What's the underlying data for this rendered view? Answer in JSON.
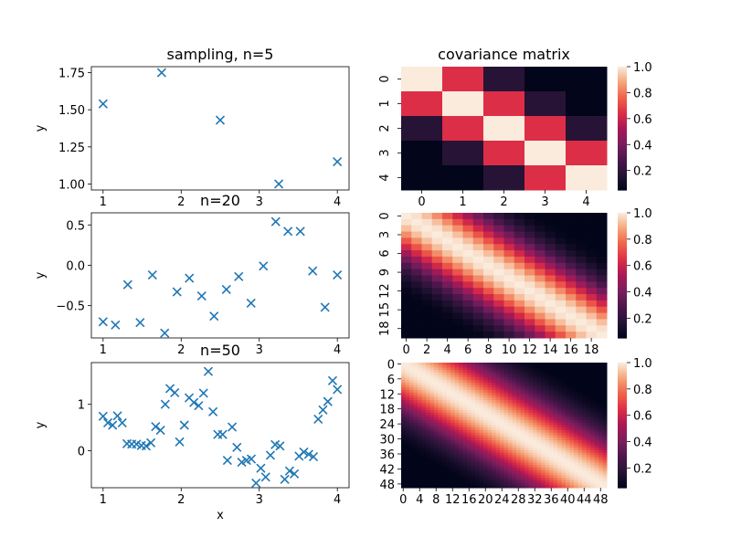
{
  "chart_data": [
    {
      "type": "scatter",
      "marker": "x",
      "color": "#1f77b4",
      "title": "sampling, n=5",
      "xlabel": "",
      "ylabel": "y",
      "xlim": [
        0.85,
        4.15
      ],
      "ylim": [
        0.96,
        1.79
      ],
      "xticks": [
        1,
        2,
        3,
        4
      ],
      "yticks": [
        1.0,
        1.25,
        1.5,
        1.75
      ],
      "ytick_labels": [
        "1.00",
        "1.25",
        "1.50",
        "1.75"
      ],
      "x": [
        1.0,
        1.75,
        2.5,
        3.25,
        4.0
      ],
      "y": [
        1.54,
        1.75,
        1.43,
        1.0,
        1.15
      ]
    },
    {
      "type": "heatmap",
      "title": "covariance matrix",
      "colormap": "rocket",
      "n": 5,
      "tick_step": 1,
      "length_scale": 0.8,
      "x_span": 3,
      "colorbar_ticks": [
        0.2,
        0.4,
        0.6,
        0.8,
        1.0
      ],
      "colorbar_tick_labels": [
        "0.2",
        "0.4",
        "0.6",
        "0.8",
        "1.0"
      ],
      "vmin": 0.05,
      "vmax": 1.0
    },
    {
      "type": "scatter",
      "marker": "x",
      "color": "#1f77b4",
      "title": "n=20",
      "xlabel": "",
      "ylabel": "y",
      "xlim": [
        0.85,
        4.15
      ],
      "ylim": [
        -0.9,
        0.65
      ],
      "xticks": [
        1,
        2,
        3,
        4
      ],
      "yticks": [
        -0.5,
        0.0,
        0.5
      ],
      "ytick_labels": [
        "−0.5",
        "0.0",
        "0.5"
      ],
      "x": [
        1.0,
        1.158,
        1.316,
        1.474,
        1.632,
        1.789,
        1.947,
        2.105,
        2.263,
        2.421,
        2.579,
        2.737,
        2.895,
        3.053,
        3.211,
        3.368,
        3.526,
        3.684,
        3.842,
        4.0
      ],
      "y": [
        -0.7,
        -0.74,
        -0.24,
        -0.71,
        -0.12,
        -0.84,
        -0.33,
        -0.16,
        -0.38,
        -0.63,
        -0.3,
        -0.14,
        -0.47,
        -0.01,
        0.54,
        0.42,
        0.42,
        -0.07,
        -0.52,
        -0.12
      ]
    },
    {
      "type": "heatmap",
      "title": "",
      "colormap": "rocket",
      "n": 20,
      "tick_step": 2,
      "y_tick_labels": [
        "0",
        "3",
        "6",
        "9",
        "12",
        "15",
        "18"
      ],
      "x_tick_labels": [
        "0",
        "2",
        "4",
        "6",
        "8",
        "10",
        "12",
        "14",
        "16",
        "18"
      ],
      "length_scale": 0.8,
      "x_span": 3,
      "colorbar_ticks": [
        0.2,
        0.4,
        0.6,
        0.8,
        1.0
      ],
      "colorbar_tick_labels": [
        "0.2",
        "0.4",
        "0.6",
        "0.8",
        "1.0"
      ],
      "vmin": 0.05,
      "vmax": 1.0
    },
    {
      "type": "scatter",
      "marker": "x",
      "color": "#1f77b4",
      "title": "n=50",
      "xlabel": "x",
      "ylabel": "y",
      "xlim": [
        0.85,
        4.15
      ],
      "ylim": [
        -0.8,
        1.9
      ],
      "xticks": [
        1,
        2,
        3,
        4
      ],
      "yticks": [
        0,
        1
      ],
      "ytick_labels": [
        "0",
        "1"
      ],
      "x": [
        1.0,
        1.061,
        1.122,
        1.184,
        1.245,
        1.306,
        1.367,
        1.429,
        1.49,
        1.551,
        1.612,
        1.673,
        1.735,
        1.796,
        1.857,
        1.918,
        1.98,
        2.041,
        2.102,
        2.163,
        2.224,
        2.286,
        2.347,
        2.408,
        2.469,
        2.531,
        2.592,
        2.653,
        2.714,
        2.776,
        2.837,
        2.898,
        2.959,
        3.02,
        3.082,
        3.143,
        3.204,
        3.265,
        3.327,
        3.388,
        3.449,
        3.51,
        3.571,
        3.633,
        3.694,
        3.755,
        3.816,
        3.878,
        3.939,
        4.0
      ],
      "y": [
        0.74,
        0.6,
        0.55,
        0.75,
        0.6,
        0.15,
        0.14,
        0.14,
        0.11,
        0.1,
        0.17,
        0.52,
        0.44,
        1.0,
        1.34,
        1.25,
        0.19,
        0.55,
        1.14,
        1.04,
        0.97,
        1.24,
        1.71,
        0.84,
        0.35,
        0.35,
        -0.21,
        0.51,
        0.07,
        -0.25,
        -0.21,
        -0.18,
        -0.7,
        -0.38,
        -0.57,
        -0.1,
        0.13,
        0.1,
        -0.62,
        -0.44,
        -0.5,
        -0.12,
        -0.03,
        -0.08,
        -0.13,
        0.68,
        0.88,
        1.06,
        1.51,
        1.32
      ]
    },
    {
      "type": "heatmap",
      "title": "",
      "colormap": "rocket",
      "n": 50,
      "tick_step": 4,
      "y_tick_labels": [
        "0",
        "6",
        "12",
        "18",
        "24",
        "30",
        "36",
        "42",
        "48"
      ],
      "x_tick_labels": [
        "0",
        "4",
        "8",
        "12",
        "16",
        "20",
        "24",
        "28",
        "32",
        "36",
        "40",
        "44",
        "48"
      ],
      "length_scale": 0.8,
      "x_span": 3,
      "colorbar_ticks": [
        0.2,
        0.4,
        0.6,
        0.8,
        1.0
      ],
      "colorbar_tick_labels": [
        "0.2",
        "0.4",
        "0.6",
        "0.8",
        "1.0"
      ],
      "vmin": 0.05,
      "vmax": 1.0
    }
  ]
}
